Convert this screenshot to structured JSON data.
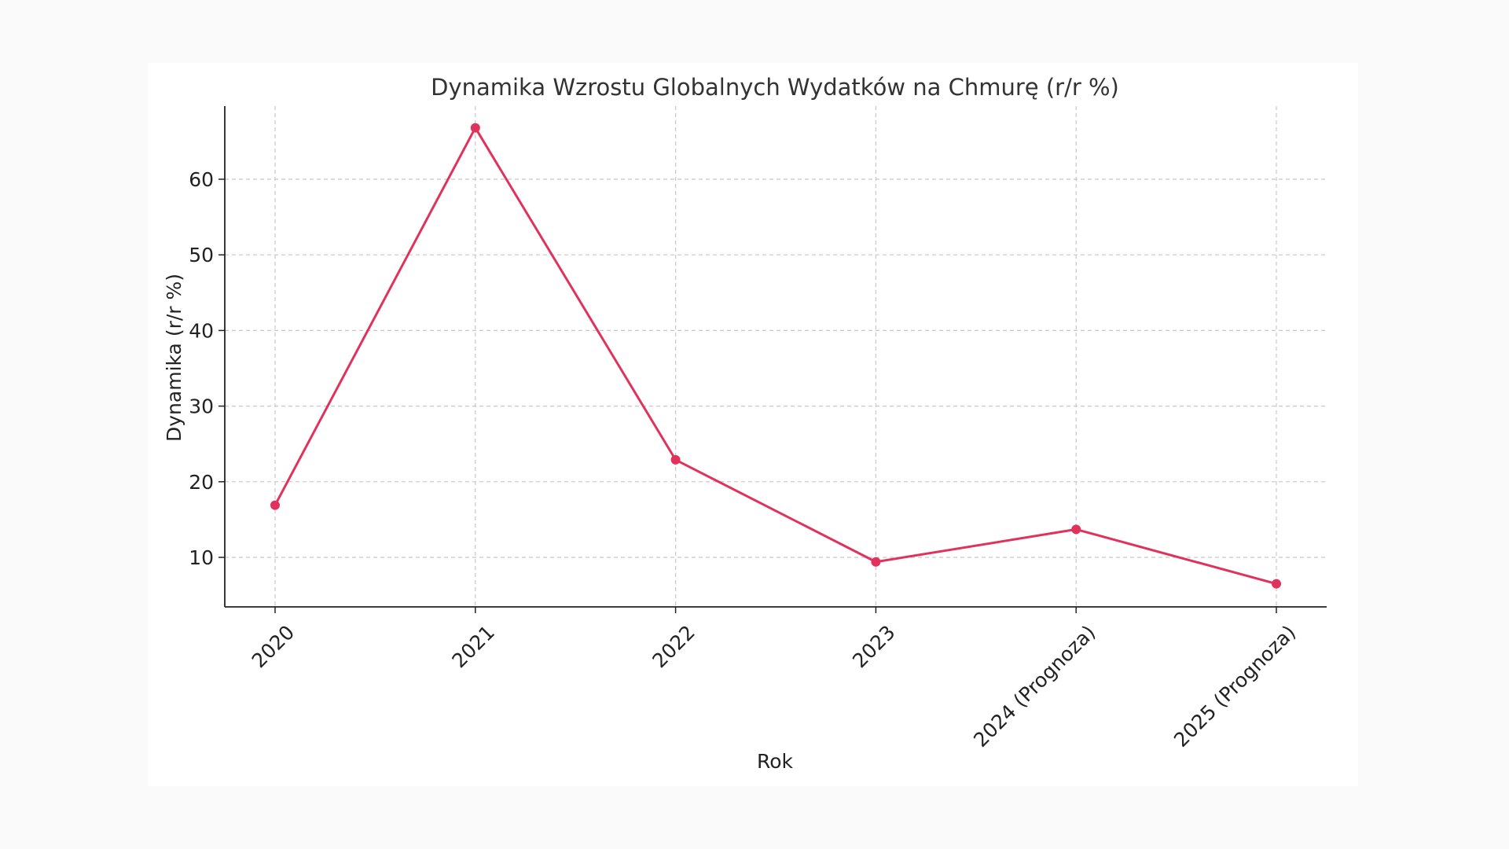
{
  "chart_data": {
    "type": "line",
    "title": "Dynamika Wzrostu Globalnych Wydatków na Chmurę (r/r %)",
    "xlabel": "Rok",
    "ylabel": "Dynamika (r/r %)",
    "categories": [
      "2020",
      "2021",
      "2022",
      "2023",
      "2024 (Prognoza)",
      "2025 (Prognoza)"
    ],
    "series": [
      {
        "values": [
          16.9,
          66.8,
          22.9,
          9.4,
          13.7,
          6.5
        ],
        "color": "#e0325a"
      }
    ],
    "ylim": [
      3.5,
      70
    ],
    "yticks": [
      10,
      20,
      30,
      40,
      50,
      60
    ],
    "grid": true,
    "legend": "none"
  }
}
